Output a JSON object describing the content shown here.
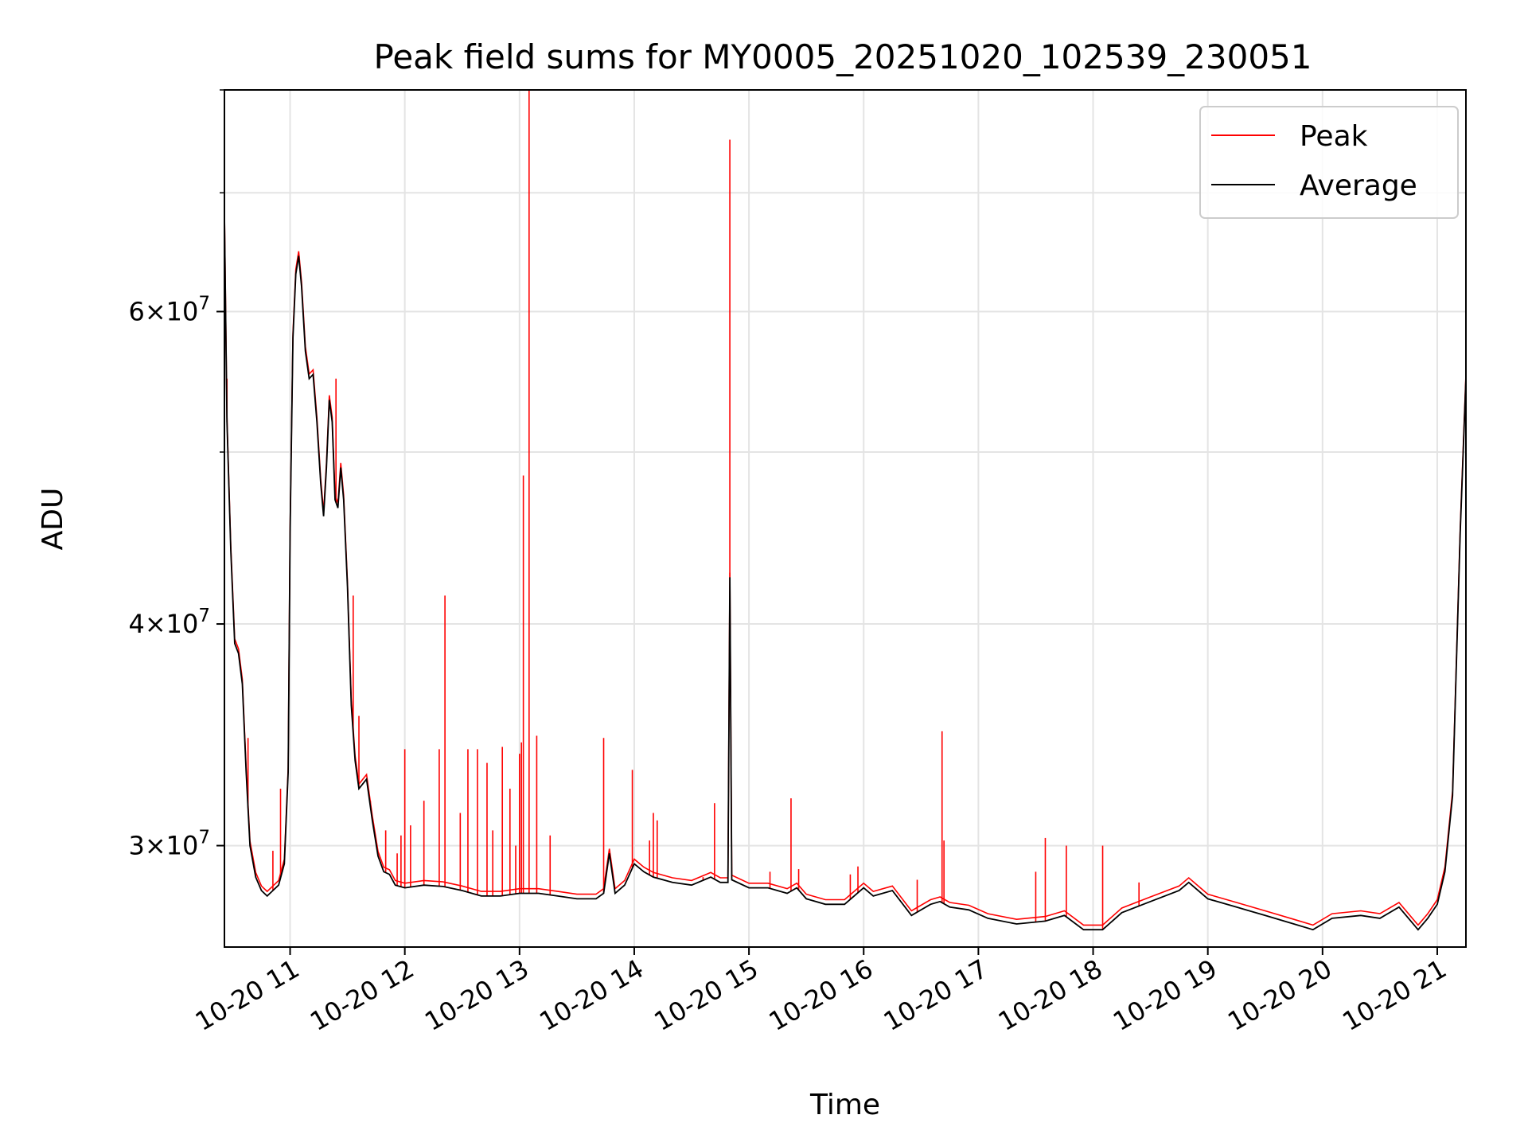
{
  "chart_data": {
    "type": "line",
    "title": "Peak field sums for MY0005_20251020_102539_230051",
    "xlabel": "Time",
    "ylabel": "ADU",
    "yscale": "log",
    "grid": true,
    "legend_position": "top-right",
    "xlim": [
      "2025-10-20T10:25:39",
      "2025-10-20T21:15:00"
    ],
    "ylim": [
      26300000,
      80000000
    ],
    "x_ticks": [
      {
        "x": "2025-10-20T11:00:00",
        "label": "10-20 11"
      },
      {
        "x": "2025-10-20T12:00:00",
        "label": "10-20 12"
      },
      {
        "x": "2025-10-20T13:00:00",
        "label": "10-20 13"
      },
      {
        "x": "2025-10-20T14:00:00",
        "label": "10-20 14"
      },
      {
        "x": "2025-10-20T15:00:00",
        "label": "10-20 15"
      },
      {
        "x": "2025-10-20T16:00:00",
        "label": "10-20 16"
      },
      {
        "x": "2025-10-20T17:00:00",
        "label": "10-20 17"
      },
      {
        "x": "2025-10-20T18:00:00",
        "label": "10-20 18"
      },
      {
        "x": "2025-10-20T19:00:00",
        "label": "10-20 19"
      },
      {
        "x": "2025-10-20T20:00:00",
        "label": "10-20 20"
      },
      {
        "x": "2025-10-20T21:00:00",
        "label": "10-20 21"
      }
    ],
    "y_major_ticks": [
      {
        "y": 30000000,
        "mantissa": "3",
        "exponent": "7"
      },
      {
        "y": 40000000,
        "mantissa": "4",
        "exponent": "7"
      },
      {
        "y": 60000000,
        "mantissa": "6",
        "exponent": "7"
      }
    ],
    "y_minor_ticks": [
      50000000,
      70000000,
      80000000
    ],
    "series": [
      {
        "name": "Average",
        "color": "#000000",
        "points": [
          [
            "2025-10-20T10:25:39",
            68000000
          ],
          [
            "2025-10-20T10:27:00",
            52000000
          ],
          [
            "2025-10-20T10:29:00",
            44000000
          ],
          [
            "2025-10-20T10:31:00",
            39000000
          ],
          [
            "2025-10-20T10:33:00",
            38500000
          ],
          [
            "2025-10-20T10:35:00",
            37000000
          ],
          [
            "2025-10-20T10:37:00",
            33000000
          ],
          [
            "2025-10-20T10:39:00",
            30000000
          ],
          [
            "2025-10-20T10:42:00",
            28800000
          ],
          [
            "2025-10-20T10:45:00",
            28300000
          ],
          [
            "2025-10-20T10:48:00",
            28100000
          ],
          [
            "2025-10-20T10:51:00",
            28300000
          ],
          [
            "2025-10-20T10:54:00",
            28500000
          ],
          [
            "2025-10-20T10:57:00",
            29300000
          ],
          [
            "2025-10-20T10:59:00",
            33000000
          ],
          [
            "2025-10-20T11:00:00",
            45000000
          ],
          [
            "2025-10-20T11:01:30",
            58000000
          ],
          [
            "2025-10-20T11:03:00",
            63000000
          ],
          [
            "2025-10-20T11:04:30",
            64500000
          ],
          [
            "2025-10-20T11:06:00",
            62000000
          ],
          [
            "2025-10-20T11:08:00",
            57000000
          ],
          [
            "2025-10-20T11:10:00",
            55000000
          ],
          [
            "2025-10-20T11:12:00",
            55300000
          ],
          [
            "2025-10-20T11:14:00",
            52000000
          ],
          [
            "2025-10-20T11:16:00",
            48000000
          ],
          [
            "2025-10-20T11:17:30",
            46000000
          ],
          [
            "2025-10-20T11:19:00",
            49000000
          ],
          [
            "2025-10-20T11:20:30",
            53500000
          ],
          [
            "2025-10-20T11:22:00",
            52000000
          ],
          [
            "2025-10-20T11:23:30",
            47000000
          ],
          [
            "2025-10-20T11:25:00",
            46500000
          ],
          [
            "2025-10-20T11:26:30",
            49000000
          ],
          [
            "2025-10-20T11:28:00",
            47000000
          ],
          [
            "2025-10-20T11:30:00",
            42000000
          ],
          [
            "2025-10-20T11:32:00",
            36000000
          ],
          [
            "2025-10-20T11:34:00",
            33500000
          ],
          [
            "2025-10-20T11:36:00",
            32300000
          ],
          [
            "2025-10-20T11:38:00",
            32500000
          ],
          [
            "2025-10-20T11:40:00",
            32700000
          ],
          [
            "2025-10-20T11:43:00",
            31000000
          ],
          [
            "2025-10-20T11:46:00",
            29600000
          ],
          [
            "2025-10-20T11:49:00",
            29000000
          ],
          [
            "2025-10-20T11:52:00",
            28900000
          ],
          [
            "2025-10-20T11:55:00",
            28500000
          ],
          [
            "2025-10-20T12:00:00",
            28400000
          ],
          [
            "2025-10-20T12:10:00",
            28500000
          ],
          [
            "2025-10-20T12:20:00",
            28450000
          ],
          [
            "2025-10-20T12:30:00",
            28300000
          ],
          [
            "2025-10-20T12:40:00",
            28100000
          ],
          [
            "2025-10-20T12:50:00",
            28100000
          ],
          [
            "2025-10-20T13:00:00",
            28200000
          ],
          [
            "2025-10-20T13:10:00",
            28200000
          ],
          [
            "2025-10-20T13:20:00",
            28100000
          ],
          [
            "2025-10-20T13:30:00",
            28000000
          ],
          [
            "2025-10-20T13:40:00",
            28000000
          ],
          [
            "2025-10-20T13:44:00",
            28200000
          ],
          [
            "2025-10-20T13:47:00",
            29700000
          ],
          [
            "2025-10-20T13:50:00",
            28200000
          ],
          [
            "2025-10-20T13:55:00",
            28500000
          ],
          [
            "2025-10-20T14:00:00",
            29300000
          ],
          [
            "2025-10-20T14:05:00",
            29000000
          ],
          [
            "2025-10-20T14:10:00",
            28800000
          ],
          [
            "2025-10-20T14:20:00",
            28600000
          ],
          [
            "2025-10-20T14:30:00",
            28500000
          ],
          [
            "2025-10-20T14:40:00",
            28800000
          ],
          [
            "2025-10-20T14:45:00",
            28600000
          ],
          [
            "2025-10-20T14:49:00",
            28600000
          ],
          [
            "2025-10-20T14:50:00",
            42500000
          ],
          [
            "2025-10-20T14:51:00",
            28700000
          ],
          [
            "2025-10-20T15:00:00",
            28400000
          ],
          [
            "2025-10-20T15:10:00",
            28400000
          ],
          [
            "2025-10-20T15:20:00",
            28200000
          ],
          [
            "2025-10-20T15:25:00",
            28400000
          ],
          [
            "2025-10-20T15:30:00",
            28000000
          ],
          [
            "2025-10-20T15:40:00",
            27800000
          ],
          [
            "2025-10-20T15:50:00",
            27800000
          ],
          [
            "2025-10-20T16:00:00",
            28400000
          ],
          [
            "2025-10-20T16:05:00",
            28100000
          ],
          [
            "2025-10-20T16:15:00",
            28300000
          ],
          [
            "2025-10-20T16:25:00",
            27400000
          ],
          [
            "2025-10-20T16:35:00",
            27800000
          ],
          [
            "2025-10-20T16:40:00",
            27900000
          ],
          [
            "2025-10-20T16:45:00",
            27700000
          ],
          [
            "2025-10-20T16:55:00",
            27600000
          ],
          [
            "2025-10-20T17:05:00",
            27300000
          ],
          [
            "2025-10-20T17:20:00",
            27100000
          ],
          [
            "2025-10-20T17:35:00",
            27200000
          ],
          [
            "2025-10-20T17:45:00",
            27400000
          ],
          [
            "2025-10-20T17:55:00",
            26900000
          ],
          [
            "2025-10-20T18:05:00",
            26900000
          ],
          [
            "2025-10-20T18:15:00",
            27500000
          ],
          [
            "2025-10-20T18:30:00",
            27900000
          ],
          [
            "2025-10-20T18:45:00",
            28300000
          ],
          [
            "2025-10-20T18:50:00",
            28600000
          ],
          [
            "2025-10-20T19:00:00",
            28000000
          ],
          [
            "2025-10-20T19:15:00",
            27700000
          ],
          [
            "2025-10-20T19:30:00",
            27400000
          ],
          [
            "2025-10-20T19:45:00",
            27100000
          ],
          [
            "2025-10-20T19:55:00",
            26900000
          ],
          [
            "2025-10-20T20:05:00",
            27300000
          ],
          [
            "2025-10-20T20:20:00",
            27400000
          ],
          [
            "2025-10-20T20:30:00",
            27300000
          ],
          [
            "2025-10-20T20:40:00",
            27700000
          ],
          [
            "2025-10-20T20:50:00",
            26900000
          ],
          [
            "2025-10-20T20:55:00",
            27300000
          ],
          [
            "2025-10-20T21:00:00",
            27800000
          ],
          [
            "2025-10-20T21:04:00",
            29000000
          ],
          [
            "2025-10-20T21:08:00",
            32000000
          ],
          [
            "2025-10-20T21:12:00",
            45000000
          ],
          [
            "2025-10-20T21:15:00",
            55000000
          ]
        ]
      },
      {
        "name": "Peak",
        "color": "#ff0000",
        "spikes": [
          [
            "2025-10-20T10:25:39",
            70000000
          ],
          [
            "2025-10-20T10:27:00",
            55000000
          ],
          [
            "2025-10-20T10:38:00",
            34500000
          ],
          [
            "2025-10-20T10:51:00",
            29800000
          ],
          [
            "2025-10-20T10:55:00",
            32300000
          ],
          [
            "2025-10-20T11:24:00",
            55000000
          ],
          [
            "2025-10-20T11:33:00",
            41500000
          ],
          [
            "2025-10-20T11:36:00",
            35500000
          ],
          [
            "2025-10-20T11:42:00",
            31800000
          ],
          [
            "2025-10-20T11:50:00",
            30600000
          ],
          [
            "2025-10-20T11:56:00",
            29700000
          ],
          [
            "2025-10-20T11:58:00",
            30400000
          ],
          [
            "2025-10-20T12:00:00",
            34000000
          ],
          [
            "2025-10-20T12:03:00",
            30800000
          ],
          [
            "2025-10-20T12:10:00",
            31800000
          ],
          [
            "2025-10-20T12:18:00",
            34000000
          ],
          [
            "2025-10-20T12:21:00",
            41500000
          ],
          [
            "2025-10-20T12:29:00",
            31300000
          ],
          [
            "2025-10-20T12:33:00",
            34000000
          ],
          [
            "2025-10-20T12:38:00",
            34000000
          ],
          [
            "2025-10-20T12:43:00",
            33400000
          ],
          [
            "2025-10-20T12:46:00",
            30600000
          ],
          [
            "2025-10-20T12:51:00",
            34100000
          ],
          [
            "2025-10-20T12:55:00",
            32300000
          ],
          [
            "2025-10-20T12:58:00",
            30000000
          ],
          [
            "2025-10-20T13:00:00",
            33800000
          ],
          [
            "2025-10-20T13:01:00",
            34300000
          ],
          [
            "2025-10-20T13:02:00",
            48500000
          ],
          [
            "2025-10-20T13:05:00",
            80000000
          ],
          [
            "2025-10-20T13:09:00",
            34600000
          ],
          [
            "2025-10-20T13:16:00",
            30400000
          ],
          [
            "2025-10-20T13:44:00",
            34500000
          ],
          [
            "2025-10-20T13:59:00",
            33100000
          ],
          [
            "2025-10-20T14:08:00",
            30200000
          ],
          [
            "2025-10-20T14:10:00",
            31300000
          ],
          [
            "2025-10-20T14:12:00",
            31000000
          ],
          [
            "2025-10-20T14:36:00",
            28800000
          ],
          [
            "2025-10-20T14:42:00",
            31700000
          ],
          [
            "2025-10-20T14:50:00",
            75000000
          ],
          [
            "2025-10-20T15:11:00",
            29000000
          ],
          [
            "2025-10-20T15:22:00",
            31900000
          ],
          [
            "2025-10-20T15:26:00",
            29100000
          ],
          [
            "2025-10-20T15:53:00",
            28900000
          ],
          [
            "2025-10-20T15:57:00",
            29200000
          ],
          [
            "2025-10-20T16:28:00",
            28700000
          ],
          [
            "2025-10-20T16:41:00",
            34800000
          ],
          [
            "2025-10-20T16:42:00",
            30200000
          ],
          [
            "2025-10-20T17:30:00",
            29000000
          ],
          [
            "2025-10-20T17:35:00",
            30300000
          ],
          [
            "2025-10-20T17:46:00",
            30000000
          ],
          [
            "2025-10-20T18:05:00",
            30000000
          ],
          [
            "2025-10-20T18:24:00",
            28600000
          ]
        ]
      }
    ]
  },
  "legend": [
    {
      "label": "Peak",
      "color": "#ff0000"
    },
    {
      "label": "Average",
      "color": "#000000"
    }
  ]
}
